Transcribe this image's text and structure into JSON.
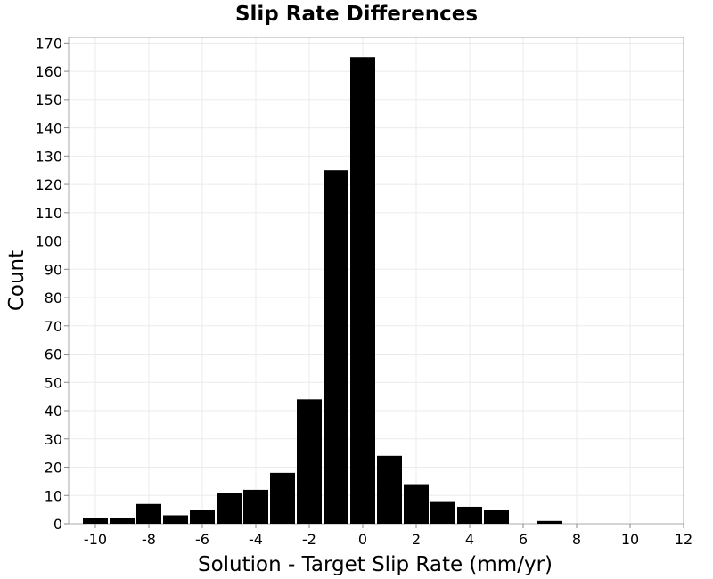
{
  "chart_data": {
    "type": "bar",
    "title": "Slip Rate Differences",
    "xlabel": "Solution - Target Slip Rate (mm/yr)",
    "ylabel": "Count",
    "xlim": [
      -11,
      12
    ],
    "ylim": [
      0,
      172
    ],
    "bin_width": 1,
    "x_ticks": [
      -10,
      -8,
      -6,
      -4,
      -2,
      0,
      2,
      4,
      6,
      8,
      10,
      12
    ],
    "y_ticks": [
      0,
      10,
      20,
      30,
      40,
      50,
      60,
      70,
      80,
      90,
      100,
      110,
      120,
      130,
      140,
      150,
      160,
      170
    ],
    "grid": true,
    "bar_color": "#000000",
    "bins": [
      {
        "x": -10,
        "count": 2
      },
      {
        "x": -9,
        "count": 2
      },
      {
        "x": -8,
        "count": 7
      },
      {
        "x": -7,
        "count": 3
      },
      {
        "x": -6,
        "count": 5
      },
      {
        "x": -5,
        "count": 11
      },
      {
        "x": -4,
        "count": 12
      },
      {
        "x": -3,
        "count": 18
      },
      {
        "x": -2,
        "count": 44
      },
      {
        "x": -1,
        "count": 125
      },
      {
        "x": 0,
        "count": 165
      },
      {
        "x": 1,
        "count": 24
      },
      {
        "x": 2,
        "count": 14
      },
      {
        "x": 3,
        "count": 8
      },
      {
        "x": 4,
        "count": 6
      },
      {
        "x": 5,
        "count": 5
      },
      {
        "x": 7,
        "count": 1
      }
    ]
  }
}
